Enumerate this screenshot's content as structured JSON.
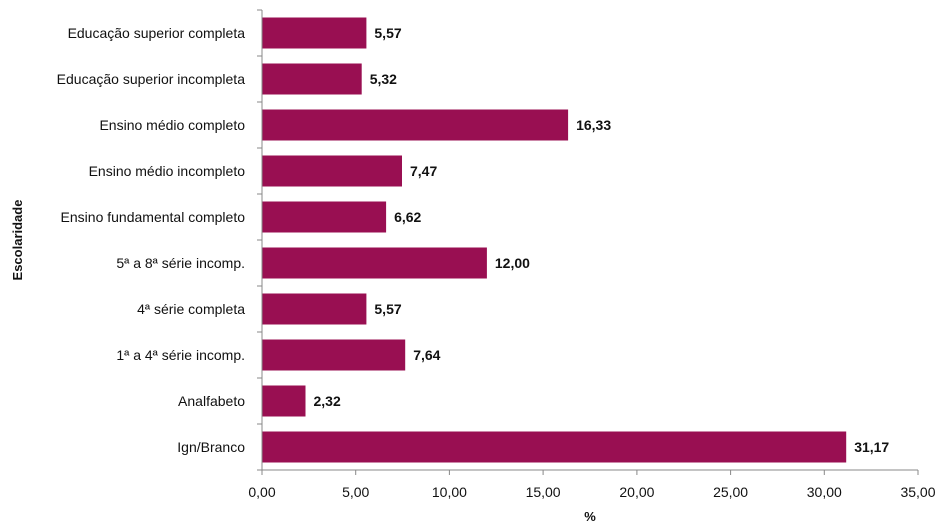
{
  "chart_data": {
    "type": "bar",
    "orientation": "horizontal",
    "categories": [
      "Educação superior completa",
      "Educação superior incompleta",
      "Ensino médio completo",
      "Ensino médio incompleto",
      "Ensino fundamental  completo",
      "5ª a 8ª série incomp.",
      "4ª série completa",
      "1ª a 4ª série incomp.",
      "Analfabeto",
      "Ign/Branco"
    ],
    "values": [
      5.57,
      5.32,
      16.33,
      7.47,
      6.62,
      12.0,
      5.57,
      7.64,
      2.32,
      31.17
    ],
    "value_labels": [
      "5,57",
      "5,32",
      "16,33",
      "7,47",
      "6,62",
      "12,00",
      "5,57",
      "7,64",
      "2,32",
      "31,17"
    ],
    "xlabel": "%",
    "ylabel": "Escolaridade",
    "xlim": [
      0,
      35
    ],
    "x_ticks": [
      0,
      5,
      10,
      15,
      20,
      25,
      30,
      35
    ],
    "x_tick_labels": [
      "0,00",
      "5,00",
      "10,00",
      "15,00",
      "20,00",
      "25,00",
      "30,00",
      "35,00"
    ],
    "grid": false,
    "legend": "none",
    "bar_color": "#990f52"
  }
}
